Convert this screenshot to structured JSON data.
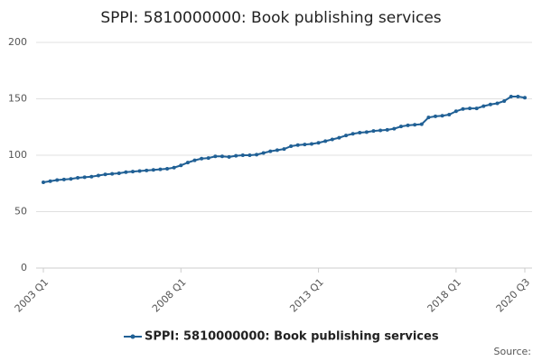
{
  "chart_data": {
    "type": "line",
    "title": "SPPI: 5810000000: Book publishing services",
    "categories": [
      "2003 Q1",
      null,
      null,
      null,
      null,
      null,
      null,
      null,
      null,
      null,
      null,
      null,
      null,
      null,
      null,
      null,
      null,
      null,
      null,
      null,
      "2008 Q1",
      null,
      null,
      null,
      null,
      null,
      null,
      null,
      null,
      null,
      null,
      null,
      null,
      null,
      null,
      null,
      null,
      null,
      null,
      null,
      "2013 Q1",
      null,
      null,
      null,
      null,
      null,
      null,
      null,
      null,
      null,
      null,
      null,
      null,
      null,
      null,
      null,
      null,
      null,
      null,
      null,
      "2018 Q1",
      null,
      null,
      null,
      null,
      null,
      null,
      null,
      null,
      null,
      "2020 Q3"
    ],
    "series": [
      {
        "name": "SPPI: 5810000000: Book publishing services",
        "color": "#206095",
        "values": [
          76,
          77,
          78,
          78.5,
          79,
          80,
          80.5,
          81,
          82,
          83,
          83.5,
          84,
          85,
          85.5,
          86,
          86.5,
          87,
          87.5,
          88,
          89,
          91,
          93.5,
          95.5,
          97,
          97.5,
          99,
          99,
          98.5,
          99.5,
          100,
          100,
          100.5,
          102,
          103.5,
          104.5,
          105.5,
          108,
          109,
          109.5,
          110,
          111,
          112.5,
          114,
          115.5,
          117.5,
          119,
          120,
          120.5,
          121.5,
          122,
          122.5,
          123.5,
          125.5,
          126.5,
          127,
          127.5,
          133.5,
          134.5,
          135,
          136,
          139,
          141,
          141.5,
          141.5,
          143.5,
          145,
          146,
          148,
          152,
          152,
          151
        ]
      }
    ],
    "ylim": [
      0,
      200
    ],
    "yticks": [
      0,
      50,
      100,
      150,
      200
    ],
    "grid": true,
    "source": "Source:"
  }
}
